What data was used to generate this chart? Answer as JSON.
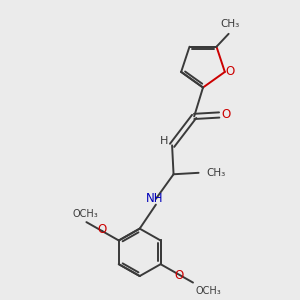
{
  "background_color": "#ebebeb",
  "bond_color": "#3a3a3a",
  "o_color": "#cc0000",
  "n_color": "#0000bb",
  "text_color": "#3a3a3a",
  "figsize": [
    3.0,
    3.0
  ],
  "dpi": 100,
  "xlim": [
    0,
    10
  ],
  "ylim": [
    0,
    10
  ]
}
